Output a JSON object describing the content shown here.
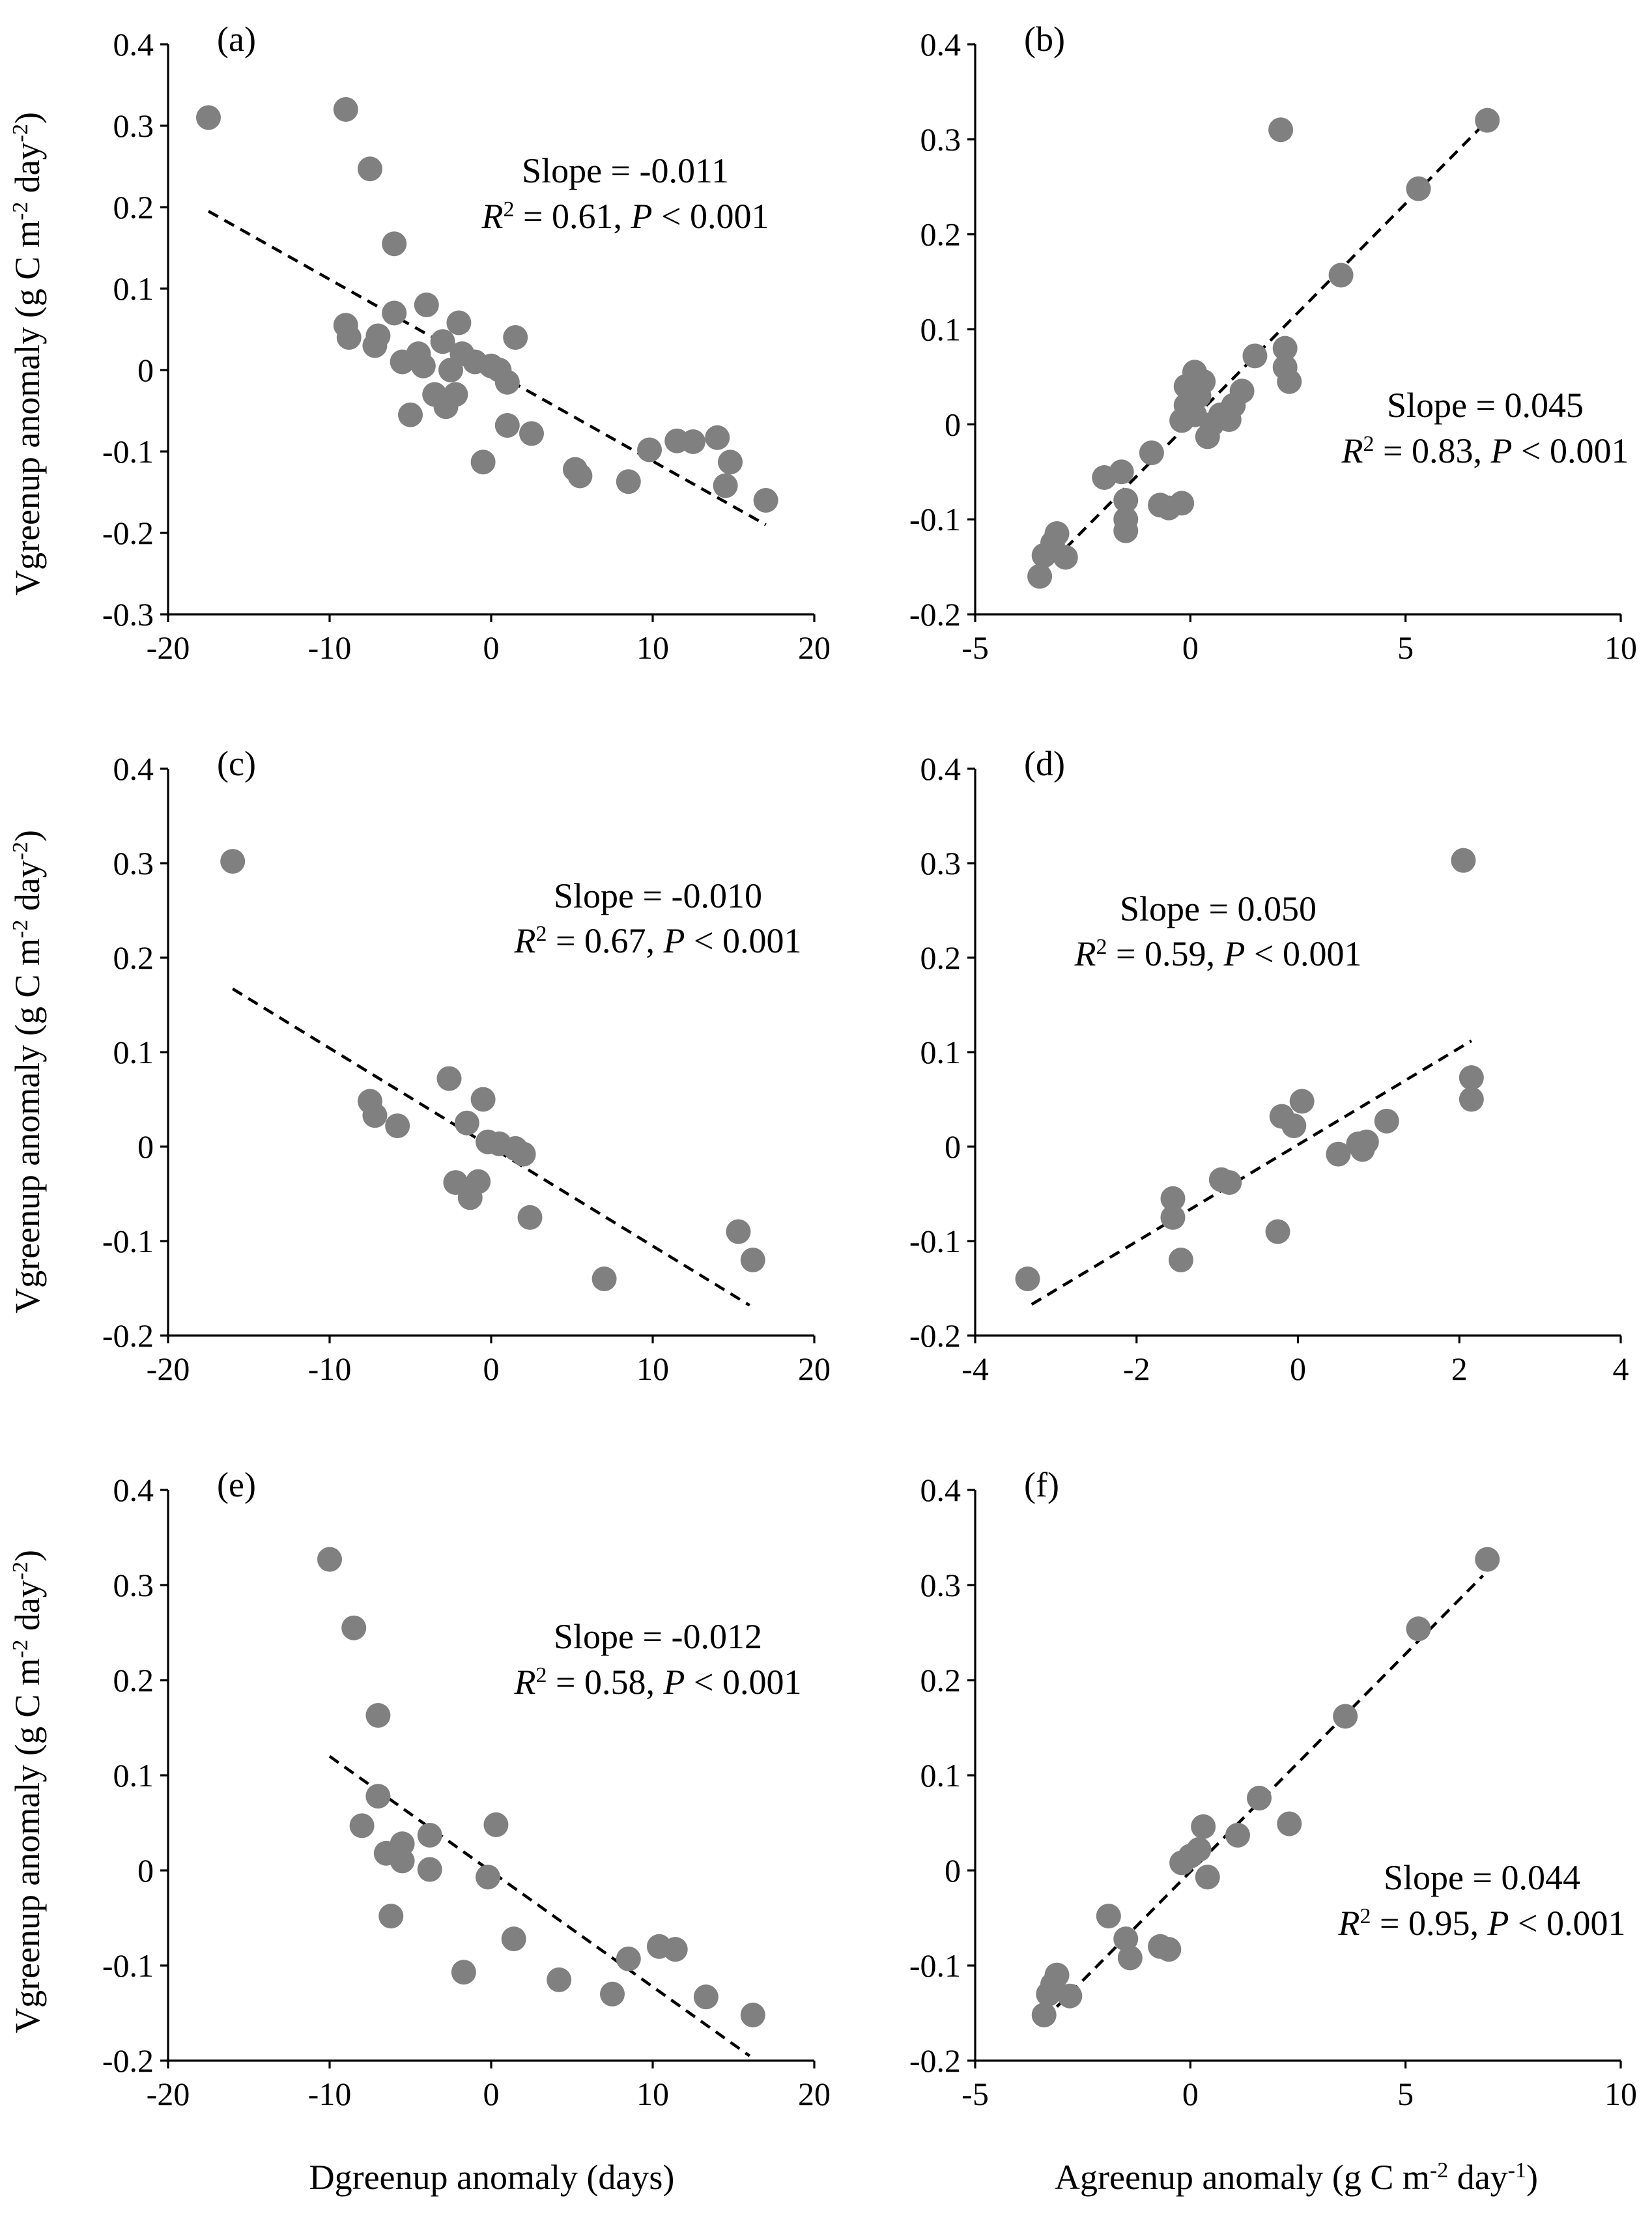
{
  "chart_data": [
    {
      "panel": "(a)",
      "type": "scatter",
      "xlabel": "",
      "ylabel": "Vgreenup anomaly (g C m-2 day-2)",
      "xlim": [
        -20,
        20
      ],
      "ylim": [
        -0.3,
        0.4
      ],
      "xticks": [
        -20,
        -10,
        0,
        10,
        20
      ],
      "xtick_labels": [
        "-20",
        "-10",
        "0",
        "10",
        "20"
      ],
      "yticks": [
        -0.3,
        -0.2,
        -0.1,
        0,
        0.1,
        0.2,
        0.3,
        0.4
      ],
      "ytick_labels": [
        "-0.3",
        "-0.2",
        "-0.1",
        "0",
        "0.1",
        "0.2",
        "0.3",
        "0.4"
      ],
      "annotation": {
        "slope": "Slope = -0.011",
        "r2_sym": "R",
        "r2_sup": "2",
        "r2_val": " = 0.61, ",
        "p_sym": "P",
        "p_val": " < 0.001"
      },
      "fit": {
        "x": [
          -17.5,
          17
        ],
        "y": [
          0.195,
          -0.19
        ]
      },
      "points": [
        [
          -17.5,
          0.31
        ],
        [
          -9,
          0.32
        ],
        [
          -7.5,
          0.247
        ],
        [
          -6,
          0.155
        ],
        [
          -9,
          0.055
        ],
        [
          -8.8,
          0.04
        ],
        [
          -7,
          0.042
        ],
        [
          -7.2,
          0.03
        ],
        [
          -6,
          0.07
        ],
        [
          -5.5,
          0.01
        ],
        [
          -5,
          -0.055
        ],
        [
          -4.5,
          0.02
        ],
        [
          -4.2,
          0.005
        ],
        [
          -4,
          0.08
        ],
        [
          -3.5,
          -0.03
        ],
        [
          -3,
          0.035
        ],
        [
          -2.8,
          -0.045
        ],
        [
          -2.5,
          0
        ],
        [
          -2.2,
          -0.03
        ],
        [
          -2,
          0.058
        ],
        [
          -1.8,
          0.02
        ],
        [
          -1,
          0.01
        ],
        [
          -0.5,
          -0.113
        ],
        [
          0,
          0.005
        ],
        [
          0.5,
          0
        ],
        [
          1,
          -0.015
        ],
        [
          1,
          -0.068
        ],
        [
          1.5,
          0.04
        ],
        [
          2.5,
          -0.078
        ],
        [
          5.2,
          -0.122
        ],
        [
          5.5,
          -0.13
        ],
        [
          8.5,
          -0.137
        ],
        [
          9.8,
          -0.098
        ],
        [
          11.5,
          -0.087
        ],
        [
          12.5,
          -0.088
        ],
        [
          14,
          -0.083
        ],
        [
          14.5,
          -0.142
        ],
        [
          14.8,
          -0.113
        ],
        [
          17,
          -0.16
        ]
      ]
    },
    {
      "panel": "(b)",
      "type": "scatter",
      "xlabel": "",
      "ylabel": "",
      "xlim": [
        -5,
        10
      ],
      "ylim": [
        -0.2,
        0.4
      ],
      "xticks": [
        -5,
        0,
        5,
        10
      ],
      "xtick_labels": [
        "-5",
        "0",
        "5",
        "10"
      ],
      "yticks": [
        -0.2,
        -0.1,
        0,
        0.1,
        0.2,
        0.3,
        0.4
      ],
      "ytick_labels": [
        "-0.2",
        "-0.1",
        "0",
        "0.1",
        "0.2",
        "0.3",
        "0.4"
      ],
      "annotation": {
        "slope": "Slope = 0.045",
        "r2_sym": "R",
        "r2_sup": "2",
        "r2_val": " = 0.83, ",
        "p_sym": "P",
        "p_val": " < 0.001"
      },
      "fit": {
        "x": [
          -3.5,
          6.8
        ],
        "y": [
          -0.158,
          0.315
        ]
      },
      "points": [
        [
          -3.5,
          -0.16
        ],
        [
          -3.4,
          -0.138
        ],
        [
          -3.2,
          -0.125
        ],
        [
          -3.1,
          -0.115
        ],
        [
          -2.9,
          -0.14
        ],
        [
          -2,
          -0.056
        ],
        [
          -1.6,
          -0.05
        ],
        [
          -1.5,
          -0.08
        ],
        [
          -1.5,
          -0.1
        ],
        [
          -1.5,
          -0.112
        ],
        [
          -0.9,
          -0.03
        ],
        [
          -0.7,
          -0.085
        ],
        [
          -0.5,
          -0.088
        ],
        [
          -0.2,
          -0.083
        ],
        [
          -0.2,
          0.004
        ],
        [
          -0.1,
          0.02
        ],
        [
          -0.1,
          0.04
        ],
        [
          0.1,
          0.01
        ],
        [
          0.1,
          0.055
        ],
        [
          0.2,
          0.03
        ],
        [
          0.3,
          0.045
        ],
        [
          0.4,
          -0.013
        ],
        [
          0.5,
          0
        ],
        [
          0.7,
          0.01
        ],
        [
          0.9,
          0.005
        ],
        [
          1,
          0.02
        ],
        [
          1.2,
          0.035
        ],
        [
          1.5,
          0.072
        ],
        [
          2.1,
          0.31
        ],
        [
          2.2,
          0.08
        ],
        [
          2.2,
          0.06
        ],
        [
          2.3,
          0.045
        ],
        [
          3.5,
          0.157
        ],
        [
          5.3,
          0.248
        ],
        [
          6.9,
          0.32
        ]
      ]
    },
    {
      "panel": "(c)",
      "type": "scatter",
      "xlabel": "",
      "ylabel": "Vgreenup anomaly (g C m-2 day-2)",
      "xlim": [
        -20,
        20
      ],
      "ylim": [
        -0.2,
        0.4
      ],
      "xticks": [
        -20,
        -10,
        0,
        10,
        20
      ],
      "xtick_labels": [
        "-20",
        "-10",
        "0",
        "10",
        "20"
      ],
      "yticks": [
        -0.2,
        -0.1,
        0,
        0.1,
        0.2,
        0.3,
        0.4
      ],
      "ytick_labels": [
        "-0.2",
        "-0.1",
        "0",
        "0.1",
        "0.2",
        "0.3",
        "0.4"
      ],
      "annotation": {
        "slope": "Slope = -0.010",
        "r2_sym": "R",
        "r2_sup": "2",
        "r2_val": " = 0.67, ",
        "p_sym": "P",
        "p_val": " < 0.001"
      },
      "fit": {
        "x": [
          -16,
          16
        ],
        "y": [
          0.167,
          -0.168
        ]
      },
      "points": [
        [
          -16,
          0.302
        ],
        [
          -7.5,
          0.048
        ],
        [
          -7.2,
          0.033
        ],
        [
          -5.8,
          0.022
        ],
        [
          -2.6,
          0.072
        ],
        [
          -2.2,
          -0.038
        ],
        [
          -1.5,
          0.025
        ],
        [
          -1.3,
          -0.054
        ],
        [
          -0.8,
          -0.037
        ],
        [
          -0.5,
          0.05
        ],
        [
          -0.2,
          0.005
        ],
        [
          0.5,
          0.003
        ],
        [
          1.5,
          -0.002
        ],
        [
          2,
          -0.008
        ],
        [
          2.4,
          -0.075
        ],
        [
          7,
          -0.14
        ],
        [
          15.3,
          -0.09
        ],
        [
          16.2,
          -0.12
        ]
      ]
    },
    {
      "panel": "(d)",
      "type": "scatter",
      "xlabel": "",
      "ylabel": "",
      "xlim": [
        -4,
        4
      ],
      "ylim": [
        -0.2,
        0.4
      ],
      "xticks": [
        -4,
        -2,
        0,
        2,
        4
      ],
      "xtick_labels": [
        "-4",
        "-2",
        "0",
        "2",
        "4"
      ],
      "yticks": [
        -0.2,
        -0.1,
        0,
        0.1,
        0.2,
        0.3,
        0.4
      ],
      "ytick_labels": [
        "-0.2",
        "-0.1",
        "0",
        "0.1",
        "0.2",
        "0.3",
        "0.4"
      ],
      "annotation": {
        "slope": "Slope = 0.050",
        "r2_sym": "R",
        "r2_sup": "2",
        "r2_val": " = 0.59, ",
        "p_sym": "P",
        "p_val": " < 0.001"
      },
      "fit": {
        "x": [
          -3.3,
          2.15
        ],
        "y": [
          -0.167,
          0.112
        ]
      },
      "points": [
        [
          -3.35,
          -0.14
        ],
        [
          -1.55,
          -0.055
        ],
        [
          -1.55,
          -0.075
        ],
        [
          -1.45,
          -0.12
        ],
        [
          -0.95,
          -0.035
        ],
        [
          -0.85,
          -0.038
        ],
        [
          -0.25,
          -0.09
        ],
        [
          -0.2,
          0.032
        ],
        [
          -0.05,
          0.022
        ],
        [
          0.05,
          0.048
        ],
        [
          0.5,
          -0.008
        ],
        [
          0.75,
          0.003
        ],
        [
          0.8,
          -0.003
        ],
        [
          0.85,
          0.005
        ],
        [
          1.1,
          0.027
        ],
        [
          2.05,
          0.303
        ],
        [
          2.15,
          0.073
        ],
        [
          2.15,
          0.05
        ]
      ]
    },
    {
      "panel": "(e)",
      "type": "scatter",
      "xlabel": "Dgreenup anomaly (days)",
      "ylabel": "Vgreenup anomaly (g C m-2 day-2)",
      "xlim": [
        -20,
        20
      ],
      "ylim": [
        -0.2,
        0.4
      ],
      "xticks": [
        -20,
        -10,
        0,
        10,
        20
      ],
      "xtick_labels": [
        "-20",
        "-10",
        "0",
        "10",
        "20"
      ],
      "yticks": [
        -0.2,
        -0.1,
        0,
        0.1,
        0.2,
        0.3,
        0.4
      ],
      "ytick_labels": [
        "-0.2",
        "-0.1",
        "0",
        "0.1",
        "0.2",
        "0.3",
        "0.4"
      ],
      "annotation": {
        "slope": "Slope = -0.012",
        "r2_sym": "R",
        "r2_sup": "2",
        "r2_val": " = 0.58, ",
        "p_sym": "P",
        "p_val": " < 0.001"
      },
      "fit": {
        "x": [
          -10,
          16
        ],
        "y": [
          0.12,
          -0.195
        ]
      },
      "points": [
        [
          -10,
          0.327
        ],
        [
          -8.5,
          0.255
        ],
        [
          -7,
          0.163
        ],
        [
          -7,
          0.078
        ],
        [
          -8,
          0.047
        ],
        [
          -6.5,
          0.018
        ],
        [
          -5.5,
          0.028
        ],
        [
          -5.5,
          0.01
        ],
        [
          -6.2,
          -0.048
        ],
        [
          -3.8,
          0.037
        ],
        [
          -3.8,
          0.001
        ],
        [
          -1.7,
          -0.107
        ],
        [
          -0.2,
          -0.007
        ],
        [
          0.3,
          0.048
        ],
        [
          1.4,
          -0.072
        ],
        [
          4.2,
          -0.115
        ],
        [
          7.5,
          -0.13
        ],
        [
          8.5,
          -0.093
        ],
        [
          10.4,
          -0.08
        ],
        [
          11.4,
          -0.083
        ],
        [
          13.3,
          -0.133
        ],
        [
          16.2,
          -0.152
        ]
      ]
    },
    {
      "panel": "(f)",
      "type": "scatter",
      "xlabel": "Agreenup anomaly (g C m-2 day-1)",
      "ylabel": "",
      "xlim": [
        -5,
        10
      ],
      "ylim": [
        -0.2,
        0.4
      ],
      "xticks": [
        -5,
        0,
        5,
        10
      ],
      "xtick_labels": [
        "-5",
        "0",
        "5",
        "10"
      ],
      "yticks": [
        -0.2,
        -0.1,
        0,
        0.1,
        0.2,
        0.3,
        0.4
      ],
      "ytick_labels": [
        "-0.2",
        "-0.1",
        "0",
        "0.1",
        "0.2",
        "0.3",
        "0.4"
      ],
      "annotation": {
        "slope": "Slope = 0.044",
        "r2_sym": "R",
        "r2_sup": "2",
        "r2_val": " = 0.95, ",
        "p_sym": "P",
        "p_val": " < 0.001"
      },
      "fit": {
        "x": [
          -3.4,
          6.8
        ],
        "y": [
          -0.157,
          0.31
        ]
      },
      "points": [
        [
          -3.4,
          -0.152
        ],
        [
          -3.3,
          -0.13
        ],
        [
          -3.2,
          -0.12
        ],
        [
          -3.1,
          -0.11
        ],
        [
          -2.8,
          -0.132
        ],
        [
          -1.9,
          -0.048
        ],
        [
          -1.5,
          -0.072
        ],
        [
          -1.4,
          -0.092
        ],
        [
          -0.7,
          -0.08
        ],
        [
          -0.5,
          -0.083
        ],
        [
          -0.2,
          0.008
        ],
        [
          0,
          0.015
        ],
        [
          0.2,
          0.022
        ],
        [
          0.3,
          0.046
        ],
        [
          0.4,
          -0.007
        ],
        [
          1.1,
          0.037
        ],
        [
          1.6,
          0.076
        ],
        [
          2.3,
          0.049
        ],
        [
          3.6,
          0.162
        ],
        [
          5.3,
          0.254
        ],
        [
          6.9,
          0.327
        ]
      ]
    }
  ],
  "labels": {
    "ylabel_main": "Vgreenup anomaly (g C m",
    "ylabel_sup1": "-2",
    "ylabel_mid": " day",
    "ylabel_sup2": "-2",
    "ylabel_end": ")",
    "xlabel_left": "Dgreenup anomaly (days)",
    "xlabel_right_main": "Agreenup anomaly (g C m",
    "xlabel_right_sup1": "-2",
    "xlabel_right_mid": " day",
    "xlabel_right_sup2": "-1",
    "xlabel_right_end": ")"
  }
}
